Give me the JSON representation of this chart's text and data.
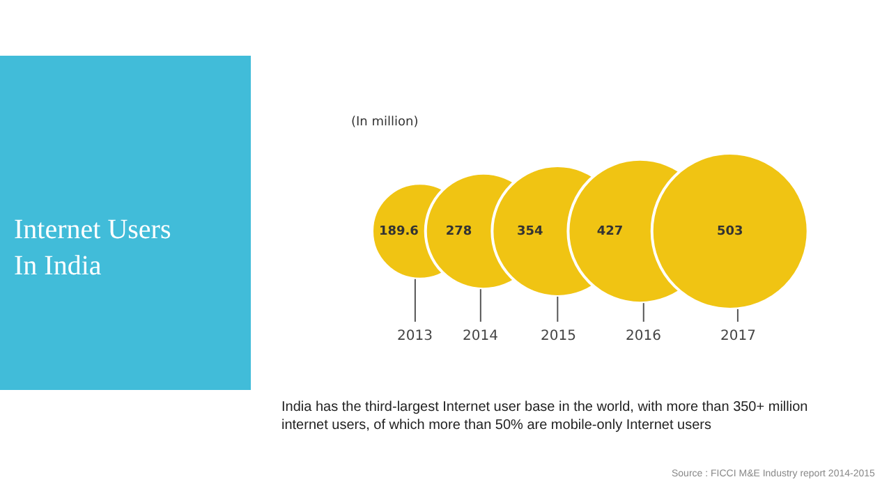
{
  "chart_data": {
    "type": "other",
    "title": "Internet Users In India",
    "subtitle": "(In million)",
    "categories": [
      "2013",
      "2014",
      "2015",
      "2016",
      "2017"
    ],
    "values": [
      189.6,
      278,
      354,
      427,
      503
    ],
    "color": "#f0c413",
    "data_labels": true,
    "annotations": [
      "India has the third-largest Internet user base in the world, with more than 350+ million internet users, of which more than 50% are mobile-only Internet users",
      "Source : FICCI M&E Industry report 2014-2015"
    ]
  }
}
